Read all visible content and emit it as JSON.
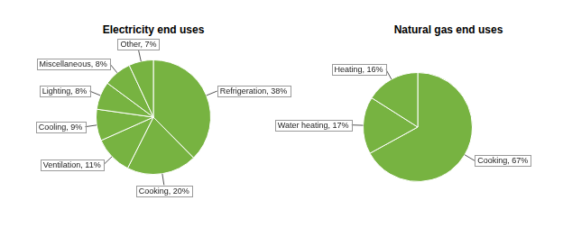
{
  "chart_data": [
    {
      "type": "pie",
      "title": "Electricity end uses",
      "categories": [
        "Refrigeration",
        "Cooking",
        "Ventilation",
        "Cooling",
        "Lighting",
        "Miscellaneous",
        "Other"
      ],
      "values": [
        38,
        20,
        11,
        9,
        8,
        8,
        7
      ],
      "value_labels": [
        "Refrigeration, 38%",
        "Cooking, 20%",
        "Ventilation, 11%",
        "Cooling, 9%",
        "Lighting, 8%",
        "Miscellaneous, 8%",
        "Other, 7%"
      ],
      "color": "#77b341",
      "data_labels": true
    },
    {
      "type": "pie",
      "title": "Natural gas end uses",
      "categories": [
        "Cooking",
        "Water heating",
        "Heating"
      ],
      "values": [
        67,
        17,
        16
      ],
      "value_labels": [
        "Cooking, 67%",
        "Water heating, 17%",
        "Heating, 16%"
      ],
      "color": "#77b341",
      "data_labels": true
    }
  ]
}
